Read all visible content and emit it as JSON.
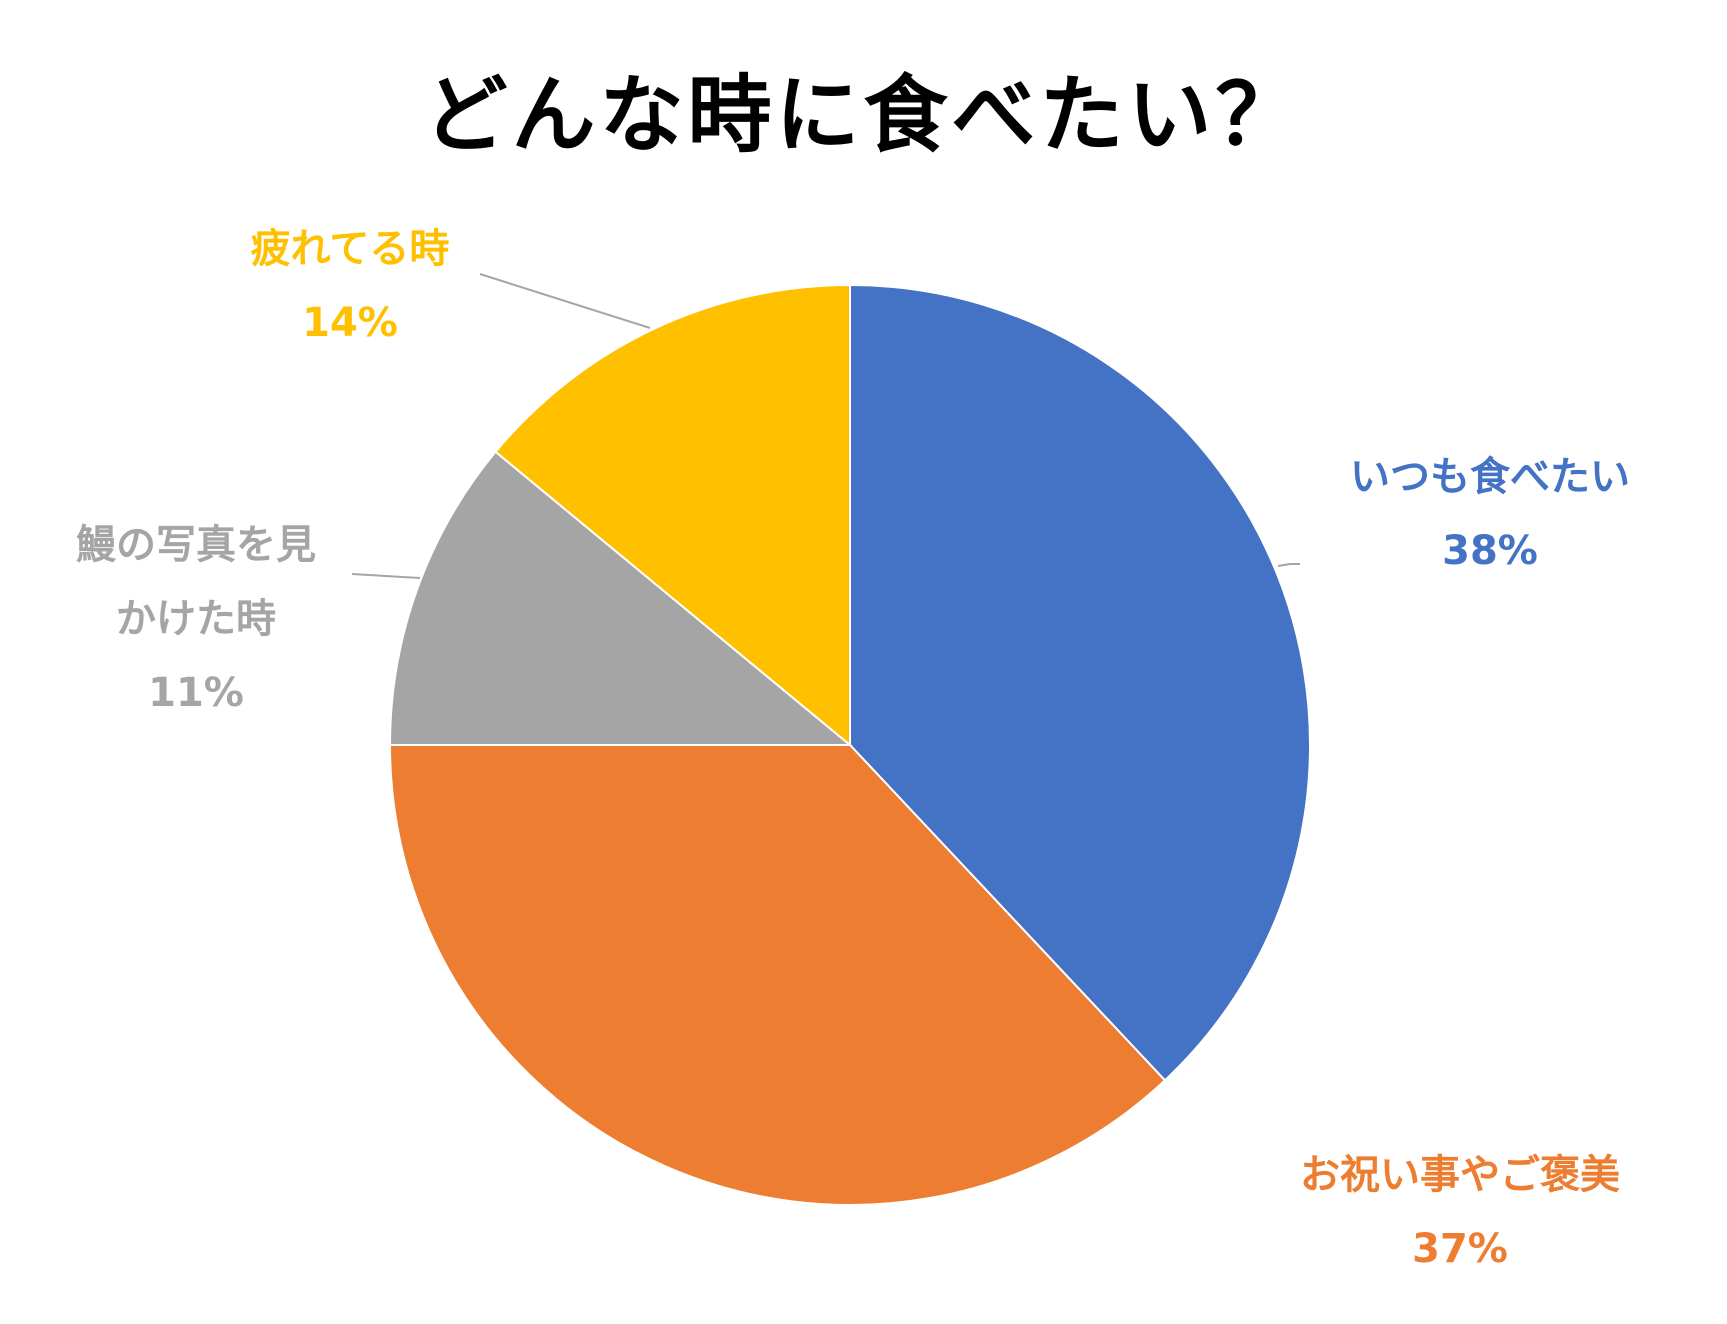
{
  "chart_data": {
    "type": "pie",
    "title": "どんな時に食べたい？",
    "start_angle_deg": 0,
    "direction": "clockwise",
    "slices": [
      {
        "label_lines": [
          "いつも食べたい"
        ],
        "percent_label": "38%",
        "value": 38,
        "color": "#4472C4"
      },
      {
        "label_lines": [
          "お祝い事やご褒美"
        ],
        "percent_label": "37%",
        "value": 37,
        "color": "#ED7D31"
      },
      {
        "label_lines": [
          "鰻の写真を見",
          "かけた時"
        ],
        "percent_label": "11%",
        "value": 11,
        "color": "#A5A5A5"
      },
      {
        "label_lines": [
          "疲れてる時"
        ],
        "percent_label": "14%",
        "value": 14,
        "color": "#FFC000"
      }
    ],
    "legend": "none",
    "data_labels": "outside-with-leader-lines"
  }
}
